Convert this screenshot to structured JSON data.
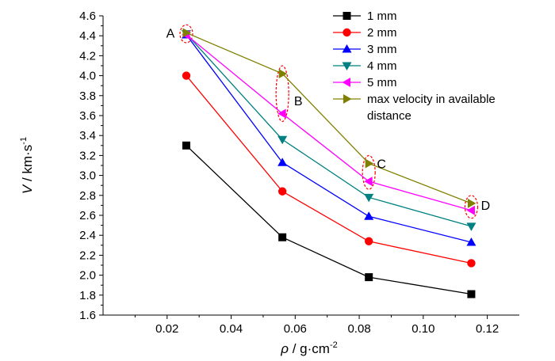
{
  "chart_data": {
    "type": "line",
    "title": "",
    "xlabel_symbol": "ρ",
    "xlabel_units": " / g·cm",
    "xlabel_exp": "-2",
    "ylabel_symbol": "V",
    "ylabel_units": " / km·s",
    "ylabel_exp": "-1",
    "xlim": [
      0.0,
      0.13
    ],
    "ylim": [
      1.6,
      4.6
    ],
    "x_ticks": [
      "0.02",
      "0.04",
      "0.06",
      "0.08",
      "0.10",
      "0.12"
    ],
    "y_ticks": [
      "1.6",
      "1.8",
      "2.0",
      "2.2",
      "2.4",
      "2.6",
      "2.8",
      "3.0",
      "3.2",
      "3.4",
      "3.6",
      "3.8",
      "4.0",
      "4.2",
      "4.4",
      "4.6"
    ],
    "x": [
      0.026,
      0.056,
      0.083,
      0.115
    ],
    "series": [
      {
        "name": "1 mm",
        "values": [
          3.3,
          2.38,
          1.98,
          1.81
        ],
        "color": "#000000",
        "marker": "square"
      },
      {
        "name": "2 mm",
        "values": [
          4.0,
          2.84,
          2.34,
          2.12
        ],
        "color": "#ff0000",
        "marker": "circle"
      },
      {
        "name": "3 mm",
        "values": [
          4.41,
          3.13,
          2.59,
          2.33
        ],
        "color": "#0000ff",
        "marker": "triangle-up"
      },
      {
        "name": "4 mm",
        "values": [
          4.42,
          3.36,
          2.78,
          2.49
        ],
        "color": "#008080",
        "marker": "triangle-down"
      },
      {
        "name": "5 mm",
        "values": [
          4.41,
          3.62,
          2.94,
          2.65
        ],
        "color": "#ff00ff",
        "marker": "triangle-left"
      },
      {
        "name": "max velocity in available distance",
        "name_lines": [
          "max velocity in available",
          "distance"
        ],
        "values": [
          4.43,
          4.02,
          3.12,
          2.72
        ],
        "color": "#808000",
        "marker": "triangle-right"
      }
    ],
    "annotations": [
      {
        "label": "A",
        "x": 0.026,
        "y_from": 4.41,
        "y_to": 4.43
      },
      {
        "label": "B",
        "x": 0.056,
        "y_from": 3.62,
        "y_to": 4.02
      },
      {
        "label": "C",
        "x": 0.083,
        "y_from": 2.94,
        "y_to": 3.12
      },
      {
        "label": "D",
        "x": 0.115,
        "y_from": 2.65,
        "y_to": 2.72
      }
    ],
    "annotation_color": "#ff0000",
    "legend_position": "top-right",
    "grid": false
  }
}
